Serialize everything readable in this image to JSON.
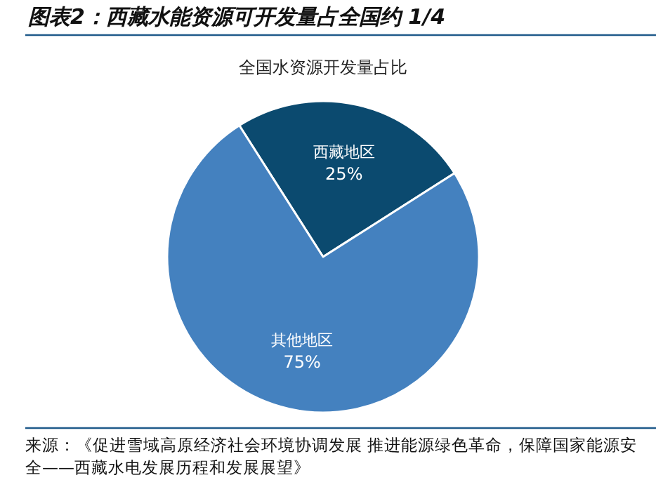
{
  "chart_data": {
    "type": "pie",
    "title": "图表2：西藏水能资源可开发量占全国约 1/4",
    "subtitle": "全国水资源开发量占比",
    "categories": [
      "西藏地区",
      "其他地区"
    ],
    "values": [
      25,
      75
    ],
    "colors": [
      "#0b4a6f",
      "#4481bf"
    ],
    "value_labels": [
      "25%",
      "75%"
    ],
    "legend": false,
    "annotations": [
      "来源：《促进雪域高原经济社会环境协调发展 推进能源绿色革命，保障国家能源安全——西藏水电发展历程和发展展望》"
    ]
  }
}
